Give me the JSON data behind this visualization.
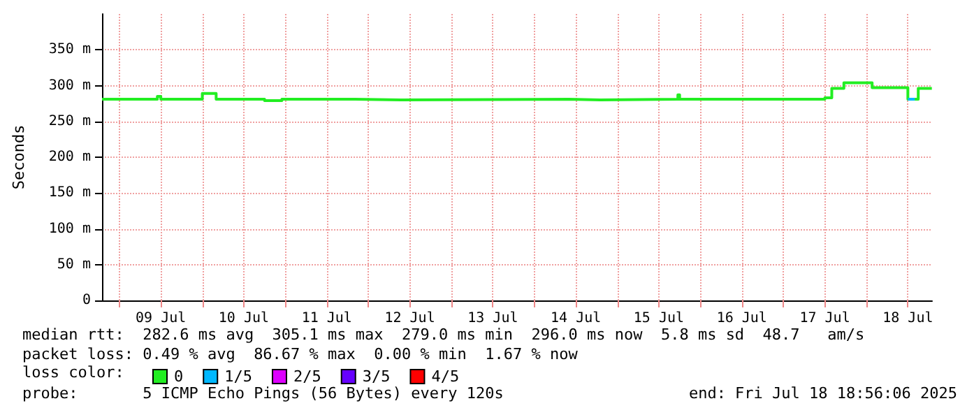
{
  "chart_data": {
    "type": "step",
    "ylabel": "Seconds",
    "xlim": [
      "2025-07-08T19:00",
      "2025-07-18T19:00"
    ],
    "xticks": [
      {
        "value": "2025-07-09T00:00",
        "label": null
      },
      {
        "value": "2025-07-09T12:00",
        "label": "09 Jul"
      },
      {
        "value": "2025-07-10T00:00",
        "label": null
      },
      {
        "value": "2025-07-10T12:00",
        "label": "10 Jul"
      },
      {
        "value": "2025-07-11T00:00",
        "label": null
      },
      {
        "value": "2025-07-11T12:00",
        "label": "11 Jul"
      },
      {
        "value": "2025-07-12T00:00",
        "label": null
      },
      {
        "value": "2025-07-12T12:00",
        "label": "12 Jul"
      },
      {
        "value": "2025-07-13T00:00",
        "label": null
      },
      {
        "value": "2025-07-13T12:00",
        "label": "13 Jul"
      },
      {
        "value": "2025-07-14T00:00",
        "label": null
      },
      {
        "value": "2025-07-14T12:00",
        "label": "14 Jul"
      },
      {
        "value": "2025-07-15T00:00",
        "label": null
      },
      {
        "value": "2025-07-15T12:00",
        "label": "15 Jul"
      },
      {
        "value": "2025-07-16T00:00",
        "label": null
      },
      {
        "value": "2025-07-16T12:00",
        "label": "16 Jul"
      },
      {
        "value": "2025-07-17T00:00",
        "label": null
      },
      {
        "value": "2025-07-17T12:00",
        "label": "17 Jul"
      },
      {
        "value": "2025-07-18T00:00",
        "label": null
      },
      {
        "value": "2025-07-18T12:00",
        "label": "18 Jul"
      }
    ],
    "ylim": [
      0,
      400
    ],
    "yticks": [
      0,
      {
        "value": 50,
        "label": "50 m"
      },
      {
        "value": 100,
        "label": "100 m"
      },
      {
        "value": 150,
        "label": "150 m"
      },
      {
        "value": 200,
        "label": "200 m"
      },
      {
        "value": 250,
        "label": "250 m"
      },
      {
        "value": 300,
        "label": "300 m"
      },
      {
        "value": 350,
        "label": "350 m"
      }
    ],
    "grid": true,
    "legend": "bottom left",
    "legend_title": "loss color:",
    "marker": "none",
    "line_style": "solid",
    "series": [
      {
        "name": "0",
        "color": "#22ee22",
        "x": [
          "2025-07-08T19:00",
          "2025-07-09T11:00",
          "2025-07-09T12:00",
          "2025-07-10T00:00",
          "2025-07-10T04:00",
          "2025-07-10T18:00",
          "2025-07-10T23:00",
          "2025-07-11T18:40",
          "2025-07-12T09:20",
          "2025-07-14T10:00",
          "2025-07-14T19:00",
          "2025-07-15T17:30",
          "2025-07-15T18:00",
          "2025-07-17T12:00",
          "2025-07-17T14:00",
          "2025-07-17T17:30",
          "2025-07-18T01:40",
          "2025-07-18T12:00",
          "2025-07-18T15:00",
          "2025-07-18T18:56"
        ],
        "values": [
          281,
          285,
          281,
          289,
          281,
          279,
          281,
          280,
          281,
          280,
          281,
          287,
          281,
          283,
          296,
          304,
          297,
          281,
          296,
          296
        ]
      },
      {
        "name": "1/5",
        "color": "#00b8ff",
        "x": [
          "2025-07-18T12:00",
          "2025-07-18T14:00"
        ],
        "values": [
          281,
          281
        ]
      },
      {
        "name": "2/5",
        "color": "#dd00ff"
      },
      {
        "name": "3/5",
        "color": "#6600ff"
      },
      {
        "name": "4/5",
        "color": "#ff0000"
      }
    ],
    "annotations": [
      "median rtt:  282.6 ms avg  305.1 ms max  279.0 ms min  296.0 ms now  5.8 ms sd  48.7   am/s",
      "packet loss: 0.49 % avg  86.67 % max  0.00 % min  1.67 % now",
      "probe:       5 ICMP Echo Pings (56 Bytes) every 120s",
      "end: Fri Jul 18 18:56:06 2025"
    ]
  }
}
